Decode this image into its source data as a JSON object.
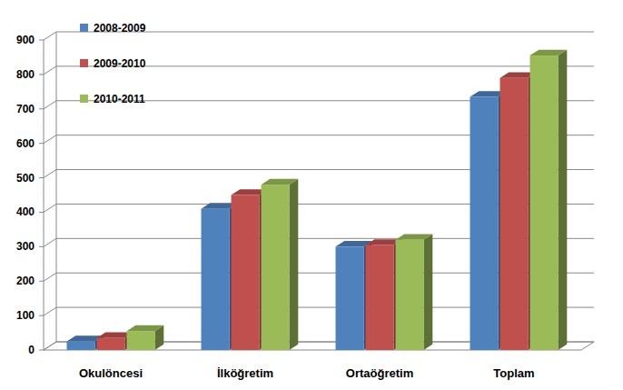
{
  "chart_data": {
    "type": "bar",
    "categories": [
      "Okulöncesi",
      "İlköğretim",
      "Ortaöğretim",
      "Toplam"
    ],
    "series": [
      {
        "name": "2008-2009",
        "color": "#4f81bd",
        "values": [
          25,
          410,
          300,
          735
        ]
      },
      {
        "name": "2009-2010",
        "color": "#c0504d",
        "values": [
          35,
          450,
          305,
          790
        ]
      },
      {
        "name": "2010-2011",
        "color": "#9bbb59",
        "values": [
          55,
          480,
          320,
          855
        ]
      }
    ],
    "ylim": [
      0,
      900
    ],
    "yticks": [
      0,
      100,
      200,
      300,
      400,
      500,
      600,
      700,
      800,
      900
    ],
    "grid": true,
    "legend": "upper left"
  }
}
